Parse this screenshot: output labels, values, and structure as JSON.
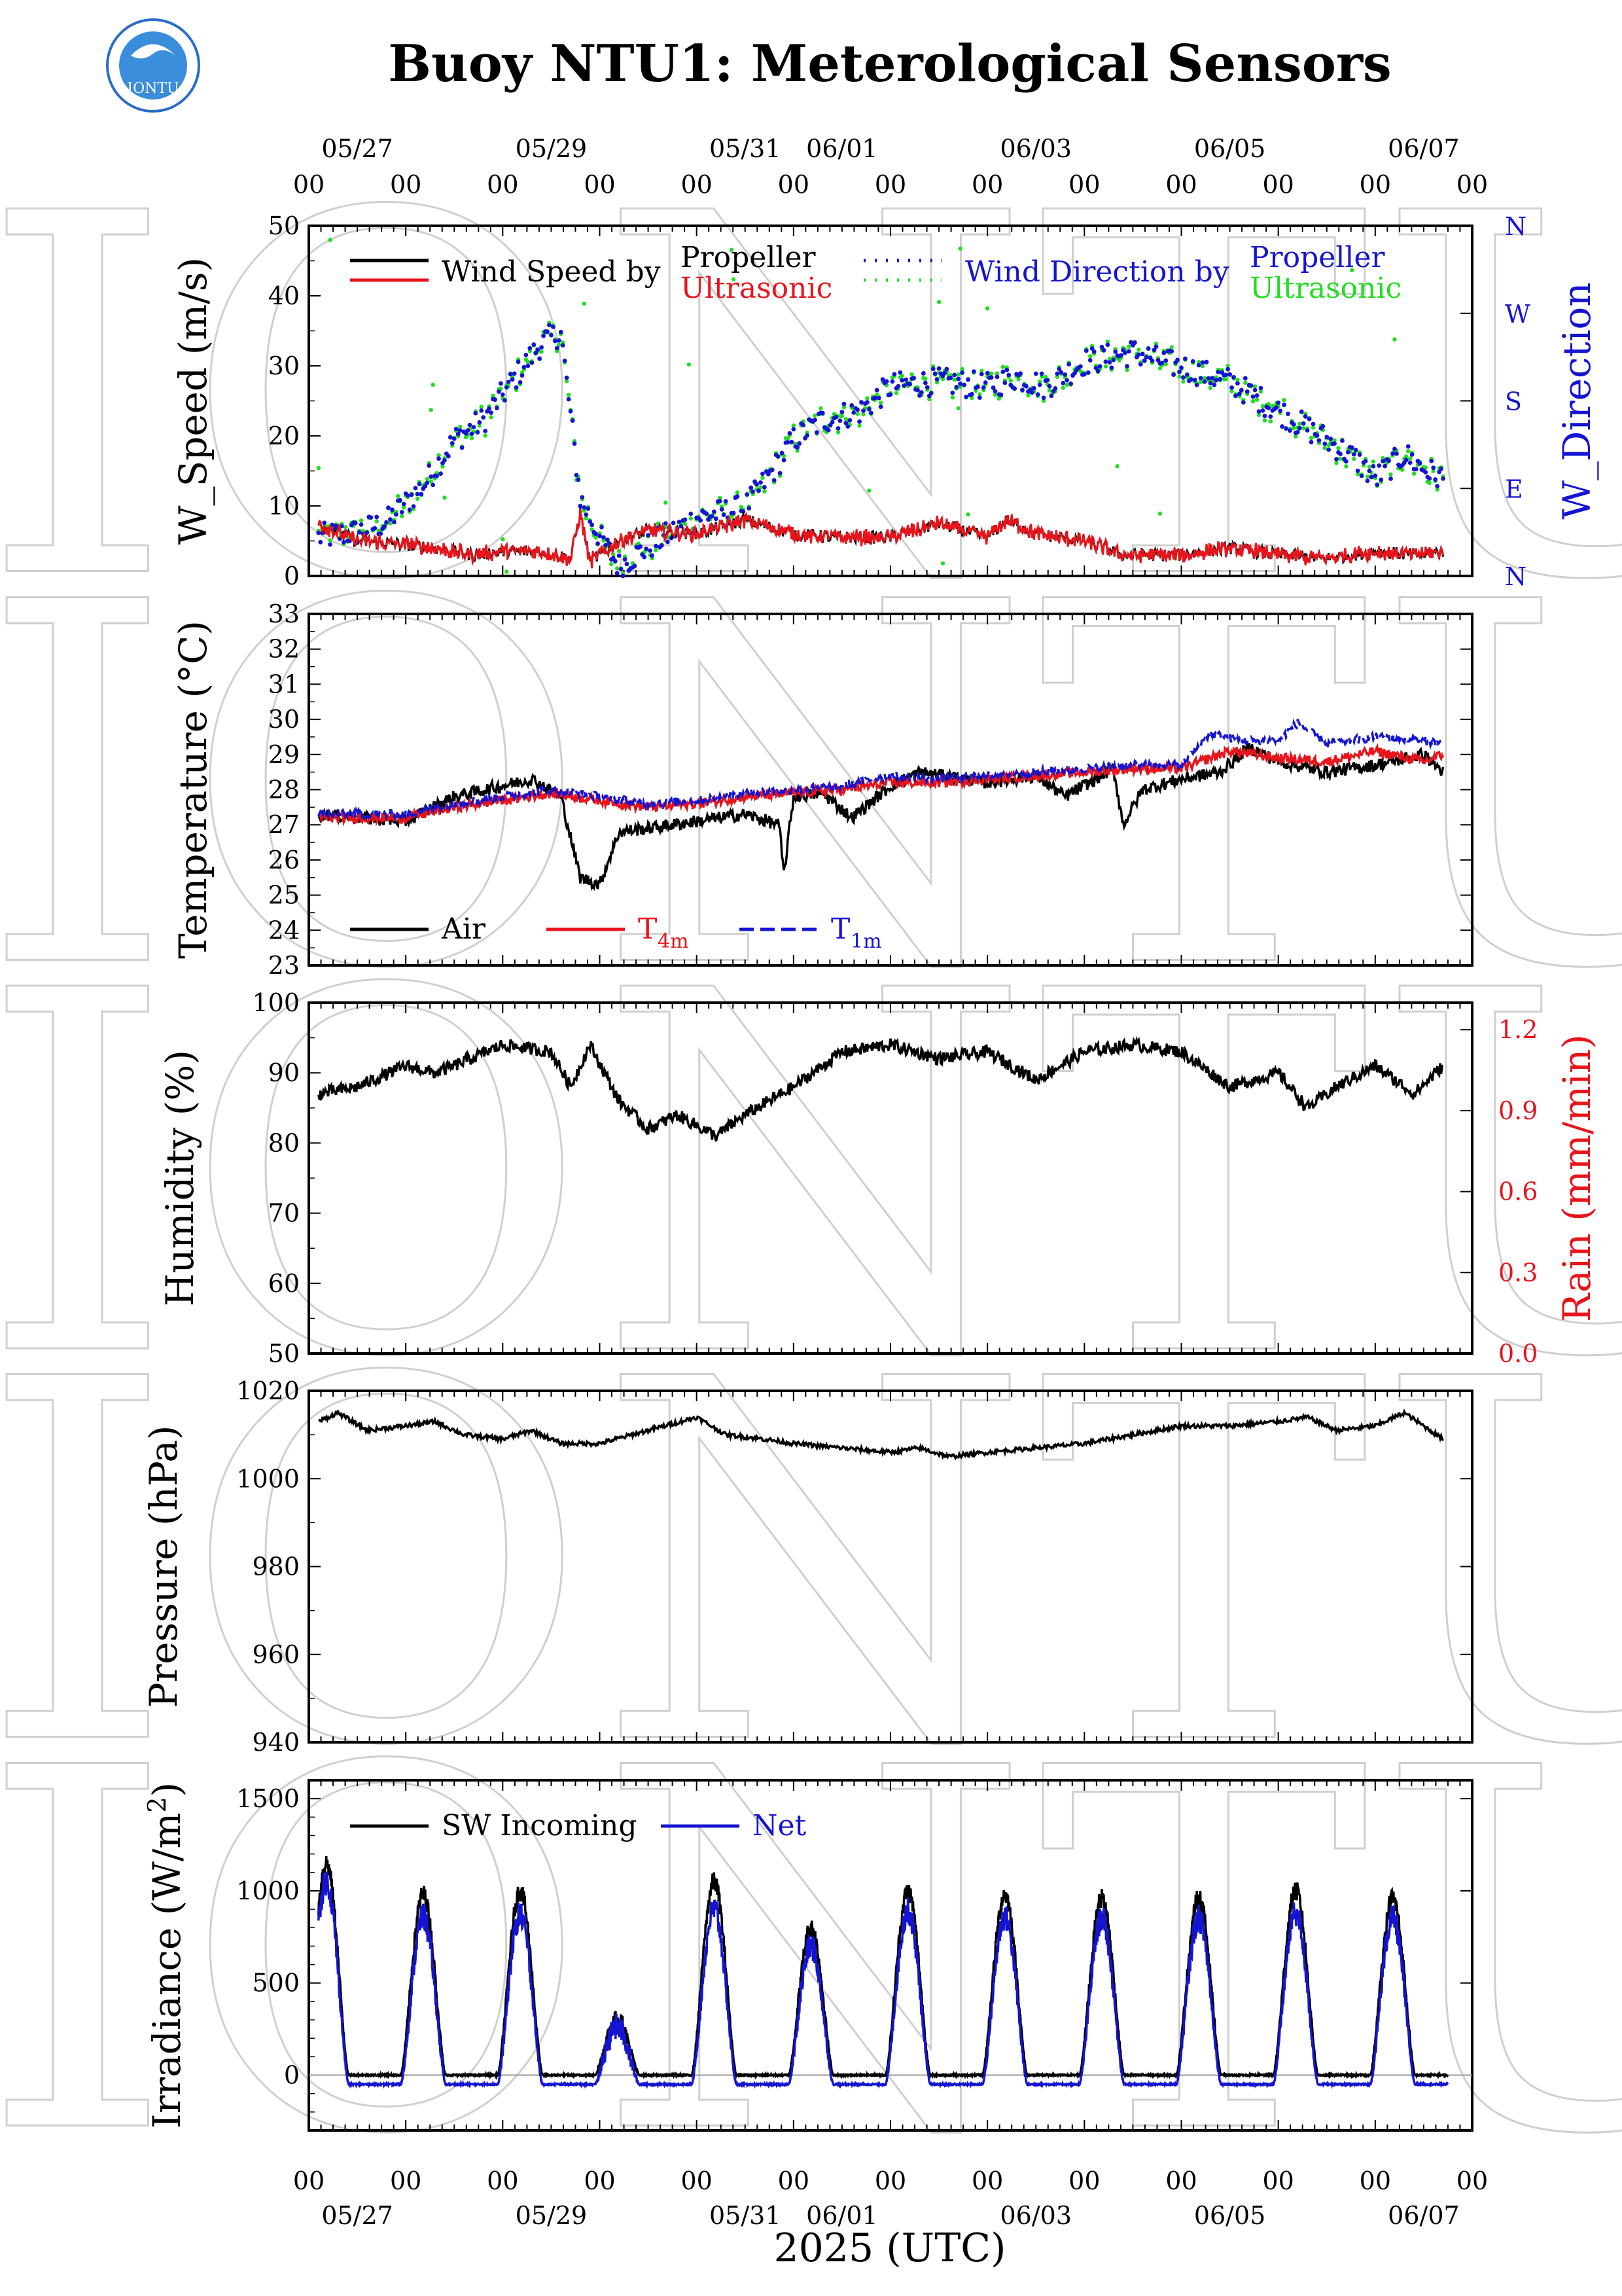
{
  "title": "Buoy NTU1: Meterological Sensors",
  "logo": {
    "text": "IONTU",
    "ring_text": "INSTITUTE OF OCEANOGRAPHY NATIONAL TAIWAN UNIVERSITY",
    "color": "#2a6cc8"
  },
  "watermark": "IONTU",
  "xaxis": {
    "label": "2025 (UTC)",
    "hour_tick_labels": [
      "00",
      "00",
      "00",
      "00",
      "00",
      "00",
      "00",
      "00",
      "00",
      "00",
      "00",
      "00",
      "00"
    ],
    "date_labels": [
      {
        "day": 0,
        "text": "05/27"
      },
      {
        "day": 2,
        "text": "05/29"
      },
      {
        "day": 4,
        "text": "05/31"
      },
      {
        "day": 5,
        "text": "06/01"
      },
      {
        "day": 7,
        "text": "06/03"
      },
      {
        "day": 9,
        "text": "06/05"
      },
      {
        "day": 11,
        "text": "06/07"
      }
    ],
    "range_days": [
      0,
      12
    ],
    "data_end_day": 11.75
  },
  "colors": {
    "black": "#000000",
    "red": "#e8141c",
    "blue": "#1414d2",
    "green": "#22dd22"
  },
  "chart_data": [
    {
      "type": "line",
      "panel": "wind",
      "ylabel": "W_Speed (m/s)",
      "ylabel_right": "W_Direction",
      "ylim": [
        0,
        50
      ],
      "yticks": [
        "0",
        "10",
        "20",
        "30",
        "40",
        "50"
      ],
      "right_ticks": [
        "N",
        "E",
        "S",
        "W",
        "N"
      ],
      "legend": {
        "speed_prefix": "Wind Speed by",
        "dir_prefix": "Wind Direction by",
        "propeller": "Propeller",
        "ultrasonic": "Ultrasonic"
      },
      "speed_keypoints": [
        [
          0.1,
          7.5
        ],
        [
          0.5,
          5
        ],
        [
          1,
          4.5
        ],
        [
          1.3,
          4
        ],
        [
          1.7,
          3
        ],
        [
          2,
          3.5
        ],
        [
          2.4,
          3.5
        ],
        [
          2.7,
          2.5
        ],
        [
          2.8,
          9
        ],
        [
          2.9,
          2
        ],
        [
          3.2,
          5
        ],
        [
          3.5,
          6.5
        ],
        [
          4,
          6
        ],
        [
          4.5,
          8
        ],
        [
          5,
          6
        ],
        [
          5.4,
          5.5
        ],
        [
          6,
          5.5
        ],
        [
          6.5,
          7.5
        ],
        [
          7,
          5.5
        ],
        [
          7.2,
          8
        ],
        [
          7.5,
          6
        ],
        [
          8,
          5
        ],
        [
          8.4,
          3
        ],
        [
          9,
          3
        ],
        [
          9.5,
          4
        ],
        [
          10,
          3
        ],
        [
          10.5,
          2.5
        ],
        [
          11,
          3.5
        ],
        [
          11.4,
          3
        ],
        [
          11.7,
          3.5
        ]
      ],
      "direction_keypoints_deg": [
        [
          0.1,
          40
        ],
        [
          0.5,
          45
        ],
        [
          0.8,
          55
        ],
        [
          1.2,
          95
        ],
        [
          1.5,
          140
        ],
        [
          1.8,
          160
        ],
        [
          2.1,
          200
        ],
        [
          2.4,
          240
        ],
        [
          2.6,
          250
        ],
        [
          2.8,
          80
        ],
        [
          3,
          40
        ],
        [
          3.2,
          10
        ],
        [
          3.5,
          30
        ],
        [
          4,
          60
        ],
        [
          4.5,
          70
        ],
        [
          4.8,
          110
        ],
        [
          5,
          140
        ],
        [
          5.3,
          160
        ],
        [
          5.7,
          170
        ],
        [
          6,
          195
        ],
        [
          6.5,
          200
        ],
        [
          7,
          195
        ],
        [
          7.3,
          205
        ],
        [
          7.6,
          195
        ],
        [
          8,
          220
        ],
        [
          8.5,
          230
        ],
        [
          9,
          215
        ],
        [
          9.5,
          200
        ],
        [
          10,
          170
        ],
        [
          10.5,
          140
        ],
        [
          10.8,
          120
        ],
        [
          11,
          100
        ],
        [
          11.3,
          125
        ],
        [
          11.5,
          110
        ],
        [
          11.7,
          100
        ]
      ]
    },
    {
      "type": "line",
      "panel": "temperature",
      "ylabel": "Temperature (°C)",
      "ylim": [
        23,
        33
      ],
      "yticks": [
        "23",
        "24",
        "25",
        "26",
        "27",
        "28",
        "29",
        "30",
        "31",
        "32",
        "33"
      ],
      "legend": {
        "air": "Air",
        "t4m": "T",
        "t4m_sub": "4m",
        "t1m": "T",
        "t1m_sub": "1m"
      },
      "series": [
        {
          "name": "Air",
          "keypoints": [
            [
              0.1,
              27.3
            ],
            [
              1,
              27.1
            ],
            [
              1.5,
              27.8
            ],
            [
              2.3,
              28.3
            ],
            [
              2.6,
              27.8
            ],
            [
              2.8,
              25.5
            ],
            [
              3.0,
              25.3
            ],
            [
              3.2,
              26.8
            ],
            [
              3.5,
              26.9
            ],
            [
              4.0,
              27.1
            ],
            [
              4.5,
              27.3
            ],
            [
              4.85,
              27.0
            ],
            [
              4.9,
              25.6
            ],
            [
              5.0,
              27.8
            ],
            [
              5.3,
              27.9
            ],
            [
              5.6,
              27.2
            ],
            [
              6,
              28.1
            ],
            [
              6.3,
              28.5
            ],
            [
              7,
              28.2
            ],
            [
              7.5,
              28.4
            ],
            [
              7.8,
              27.8
            ],
            [
              8.3,
              28.6
            ],
            [
              8.4,
              27.0
            ],
            [
              8.6,
              28.0
            ],
            [
              9,
              28.3
            ],
            [
              9.4,
              28.5
            ],
            [
              9.7,
              29.2
            ],
            [
              10,
              28.8
            ],
            [
              10.5,
              28.5
            ],
            [
              11,
              28.7
            ],
            [
              11.5,
              29.0
            ],
            [
              11.7,
              28.5
            ]
          ]
        },
        {
          "name": "T4m",
          "keypoints": [
            [
              0.1,
              27.2
            ],
            [
              1,
              27.2
            ],
            [
              1.5,
              27.5
            ],
            [
              2.5,
              27.9
            ],
            [
              3,
              27.7
            ],
            [
              3.5,
              27.5
            ],
            [
              4,
              27.6
            ],
            [
              4.5,
              27.8
            ],
            [
              5,
              27.9
            ],
            [
              5.5,
              28.0
            ],
            [
              6,
              28.2
            ],
            [
              6.5,
              28.2
            ],
            [
              7,
              28.3
            ],
            [
              7.5,
              28.4
            ],
            [
              8,
              28.5
            ],
            [
              8.5,
              28.6
            ],
            [
              9,
              28.6
            ],
            [
              9.5,
              29.1
            ],
            [
              10,
              28.9
            ],
            [
              10.5,
              28.8
            ],
            [
              11,
              29.1
            ],
            [
              11.5,
              28.8
            ],
            [
              11.7,
              29.0
            ]
          ]
        },
        {
          "name": "T1m",
          "keypoints": [
            [
              0.1,
              27.3
            ],
            [
              1,
              27.3
            ],
            [
              1.5,
              27.6
            ],
            [
              2.5,
              28.0
            ],
            [
              3,
              27.8
            ],
            [
              3.5,
              27.6
            ],
            [
              4,
              27.7
            ],
            [
              4.5,
              27.9
            ],
            [
              5,
              28.0
            ],
            [
              5.5,
              28.1
            ],
            [
              6,
              28.4
            ],
            [
              6.5,
              28.3
            ],
            [
              7,
              28.4
            ],
            [
              7.5,
              28.5
            ],
            [
              8,
              28.6
            ],
            [
              8.5,
              28.7
            ],
            [
              9,
              28.7
            ],
            [
              9.3,
              29.6
            ],
            [
              9.6,
              29.4
            ],
            [
              10,
              29.4
            ],
            [
              10.2,
              29.9
            ],
            [
              10.5,
              29.3
            ],
            [
              11,
              29.5
            ],
            [
              11.5,
              29.4
            ],
            [
              11.7,
              29.3
            ]
          ]
        }
      ]
    },
    {
      "type": "line",
      "panel": "humidity",
      "ylabel": "Humidity (%)",
      "ylabel_right": "Rain (mm/min)",
      "ylim": [
        50,
        100
      ],
      "yticks": [
        "50",
        "60",
        "70",
        "80",
        "90",
        "100"
      ],
      "right_ticks": [
        "0.0",
        "0.3",
        "0.6",
        "0.9",
        "1.2"
      ],
      "keypoints": [
        [
          0.1,
          87
        ],
        [
          0.5,
          88
        ],
        [
          1,
          91
        ],
        [
          1.3,
          90
        ],
        [
          1.5,
          91
        ],
        [
          2,
          94
        ],
        [
          2.5,
          93
        ],
        [
          2.7,
          88
        ],
        [
          2.9,
          94
        ],
        [
          3.2,
          86
        ],
        [
          3.5,
          82
        ],
        [
          3.8,
          84
        ],
        [
          4.2,
          81
        ],
        [
          4.5,
          84
        ],
        [
          5,
          88
        ],
        [
          5.5,
          93
        ],
        [
          6,
          94
        ],
        [
          6.5,
          92
        ],
        [
          7,
          93
        ],
        [
          7.5,
          89
        ],
        [
          8,
          93
        ],
        [
          8.5,
          94
        ],
        [
          9,
          93
        ],
        [
          9.5,
          88
        ],
        [
          10,
          90
        ],
        [
          10.3,
          85
        ],
        [
          10.6,
          88
        ],
        [
          11,
          91
        ],
        [
          11.4,
          87
        ],
        [
          11.7,
          91
        ]
      ]
    },
    {
      "type": "line",
      "panel": "pressure",
      "ylabel": "Pressure (hPa)",
      "ylim": [
        940,
        1020
      ],
      "yticks": [
        "940",
        "960",
        "980",
        "1000",
        "1020"
      ],
      "keypoints": [
        [
          0.1,
          1013
        ],
        [
          0.3,
          1015
        ],
        [
          0.6,
          1011
        ],
        [
          1,
          1012
        ],
        [
          1.3,
          1013
        ],
        [
          1.6,
          1010
        ],
        [
          2,
          1009
        ],
        [
          2.3,
          1011
        ],
        [
          2.6,
          1008
        ],
        [
          3,
          1008
        ],
        [
          3.5,
          1011
        ],
        [
          4,
          1014
        ],
        [
          4.3,
          1010
        ],
        [
          4.7,
          1009
        ],
        [
          5,
          1008
        ],
        [
          5.5,
          1007
        ],
        [
          6,
          1006
        ],
        [
          6.3,
          1007
        ],
        [
          6.6,
          1005
        ],
        [
          7,
          1006
        ],
        [
          7.5,
          1007
        ],
        [
          8,
          1008
        ],
        [
          8.5,
          1010
        ],
        [
          9,
          1012
        ],
        [
          9.5,
          1012
        ],
        [
          10,
          1013
        ],
        [
          10.3,
          1014
        ],
        [
          10.6,
          1011
        ],
        [
          11,
          1012
        ],
        [
          11.3,
          1015
        ],
        [
          11.7,
          1009
        ]
      ]
    },
    {
      "type": "line",
      "panel": "irradiance",
      "ylabel": "Irradiance (W/m",
      "ylabel_sup": "2",
      "ylabel_tail": ")",
      "ylim": [
        -300,
        1600
      ],
      "yticks": [
        "0",
        "500",
        "1000",
        "1500"
      ],
      "legend": {
        "sw": "SW Incoming",
        "net": "Net"
      },
      "daily_peaks_sw": [
        1150,
        980,
        1000,
        300,
        1050,
        800,
        1000,
        980,
        960,
        960,
        1000,
        960
      ],
      "daily_peaks_net": [
        1050,
        860,
        870,
        260,
        900,
        700,
        890,
        860,
        850,
        850,
        880,
        850
      ],
      "night_sw": 0,
      "night_net": -50
    }
  ]
}
